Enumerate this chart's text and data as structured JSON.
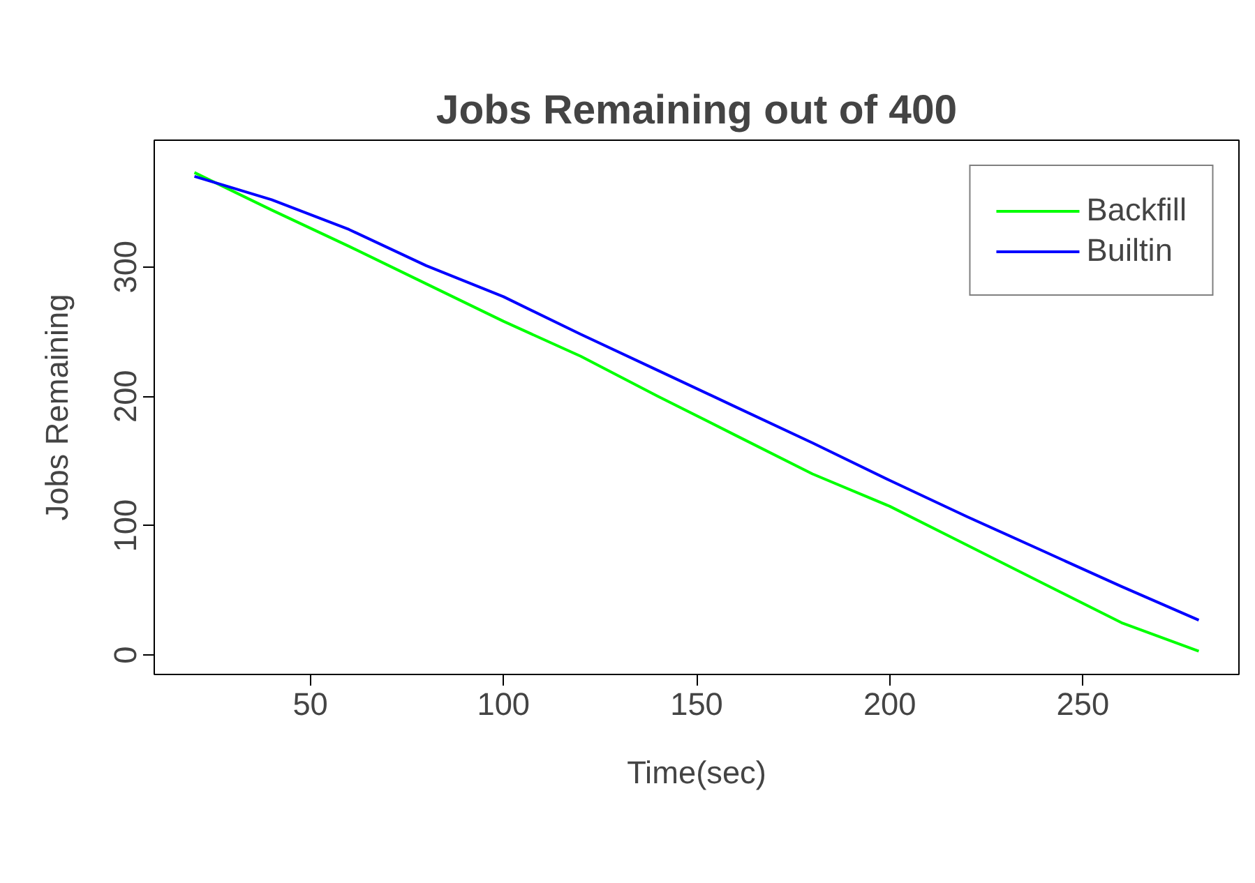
{
  "chart_data": {
    "type": "line",
    "title": "Jobs Remaining out of 400",
    "xlabel": "Time(sec)",
    "ylabel": "Jobs Remaining",
    "x": [
      20,
      40,
      60,
      80,
      100,
      120,
      140,
      160,
      180,
      200,
      220,
      240,
      260,
      280
    ],
    "series": [
      {
        "name": "Backfill",
        "color": "#00ff00",
        "values": [
          373,
          344,
          316,
          287,
          258,
          231,
          200,
          170,
          140,
          115,
          85,
          55,
          25,
          3
        ]
      },
      {
        "name": "Builtin",
        "color": "#0000ff",
        "values": [
          370,
          352,
          329,
          301,
          277,
          248,
          220,
          192,
          164,
          135,
          107,
          80,
          53,
          27
        ]
      }
    ],
    "xlim": [
      9.6,
      290.4
    ],
    "ylim": [
      -15,
      398
    ],
    "xticks": [
      50,
      100,
      150,
      200,
      250
    ],
    "yticks": [
      0,
      100,
      200,
      300
    ],
    "grid": false,
    "legend": "top right",
    "marker": "none",
    "line_style": "solid"
  }
}
